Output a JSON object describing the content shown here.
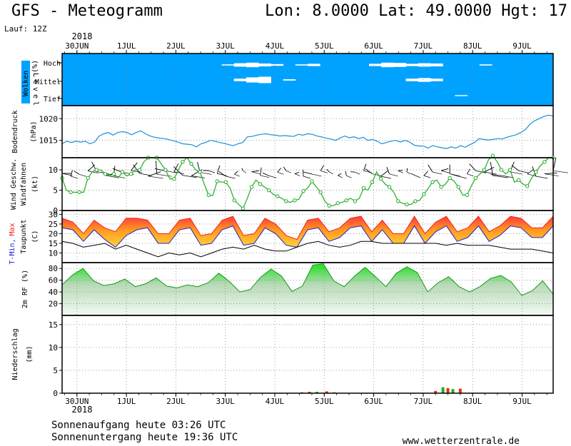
{
  "header": {
    "title": "GFS - Meteogramm",
    "location": "Lon: 8.0000  Lat: 49.0000  Hgt: 17",
    "run": "Lauf: 12Z"
  },
  "axis": {
    "year_top": "2018",
    "year_bottom": "2018",
    "date_labels": [
      "30JUN",
      "1JUL",
      "2JUL",
      "3JUL",
      "4JUL",
      "5JUL",
      "6JUL",
      "7JUL",
      "8JUL",
      "9JUL"
    ]
  },
  "footer": {
    "sunrise": "Sonnenaufgang heute 03:26 UTC",
    "sunset": "Sonnenuntergang heute 19:36 UTC",
    "website": "www.wetterzentrale.de"
  },
  "colors": {
    "cloud": "#00a2ff",
    "pressure": "#1a8fd8",
    "wind": "#22aa22",
    "tmin": "#2222cc",
    "tmax": "#ee2222",
    "rh": "#1db31d",
    "precip_green": "#22aa22",
    "precip_red": "#dd3311"
  },
  "chart_data": [
    {
      "type": "area",
      "panel": "clouds",
      "ylabel_parts": [
        "Wolken",
        "(%)",
        "Level"
      ],
      "levels": [
        "Hoch",
        "Mittel",
        "Tief"
      ],
      "x_start_day": 29.7,
      "x_end_day": 39.55,
      "series": [
        {
          "name": "Hoch",
          "values": [
            100,
            100,
            100,
            100,
            100,
            100,
            100,
            100,
            100,
            100,
            100,
            100,
            100,
            90,
            70,
            60,
            75,
            85,
            100,
            90,
            80,
            100,
            100,
            100,
            100,
            80,
            60,
            65,
            80,
            70,
            75,
            100,
            100,
            100,
            90,
            100,
            100,
            100,
            100,
            100
          ]
        },
        {
          "name": "Mittel",
          "values": [
            100,
            100,
            100,
            100,
            100,
            100,
            100,
            100,
            100,
            100,
            100,
            100,
            100,
            100,
            80,
            60,
            50,
            100,
            90,
            100,
            100,
            100,
            100,
            100,
            100,
            100,
            100,
            100,
            80,
            70,
            80,
            100,
            100,
            100,
            100,
            100,
            100,
            100,
            100,
            100
          ]
        },
        {
          "name": "Tief",
          "values": [
            100,
            100,
            100,
            100,
            100,
            100,
            100,
            100,
            100,
            100,
            100,
            100,
            100,
            100,
            100,
            100,
            100,
            100,
            100,
            100,
            100,
            100,
            100,
            100,
            100,
            100,
            100,
            100,
            100,
            100,
            100,
            100,
            90,
            100,
            100,
            100,
            100,
            100,
            100,
            100
          ]
        }
      ]
    },
    {
      "type": "line",
      "panel": "pressure",
      "ylabel": "Bodendruck",
      "unit": "(hPa)",
      "yticks": [
        1015,
        1020
      ],
      "ylim": [
        1011,
        1023
      ],
      "series": [
        {
          "name": "Bodendruck",
          "values": [
            1014.2,
            1014.8,
            1014.5,
            1014.8,
            1014.6,
            1014.8,
            1014.2,
            1014.6,
            1016.0,
            1016.5,
            1016.8,
            1016.2,
            1016.8,
            1017.0,
            1016.8,
            1016.3,
            1016.8,
            1017.2,
            1016.5,
            1016.0,
            1015.7,
            1015.5,
            1015.4,
            1015.2,
            1014.9,
            1014.6,
            1014.2,
            1014.1,
            1014.0,
            1013.5,
            1014.2,
            1014.5,
            1015.0,
            1014.8,
            1014.5,
            1014.3,
            1014.0,
            1013.8,
            1014.2,
            1014.5,
            1015.8,
            1015.9,
            1016.2,
            1016.4,
            1016.5,
            1016.3,
            1016.2,
            1016.0,
            1016.1,
            1016.0,
            1015.9,
            1016.4,
            1016.2,
            1016.5,
            1016.4,
            1016.0,
            1015.8,
            1015.5,
            1015.3,
            1015.0,
            1015.5,
            1016.0,
            1015.6,
            1015.8,
            1015.4,
            1015.7,
            1015.0,
            1015.2,
            1014.8,
            1014.2,
            1014.5,
            1014.8,
            1015.0,
            1014.6,
            1015.0,
            1014.6,
            1013.9,
            1013.7,
            1013.7,
            1013.2,
            1013.8,
            1013.5,
            1013.3,
            1013.1,
            1013.5,
            1013.2,
            1013.8,
            1013.4,
            1014.0,
            1014.5,
            1015.4,
            1015.2,
            1015.1,
            1015.2,
            1015.4,
            1015.3,
            1015.7,
            1016.0,
            1016.3,
            1016.8,
            1017.5,
            1018.7,
            1019.5,
            1020.0,
            1020.5,
            1020.8,
            1020.6
          ]
        }
      ]
    },
    {
      "type": "line",
      "panel": "wind",
      "ylabel_parts": [
        "Wind Geschw.",
        "Windfahnen",
        "(kt)"
      ],
      "yticks": [
        0,
        5,
        10
      ],
      "ylim": [
        0,
        13
      ],
      "series": [
        {
          "name": "Wind Geschw.",
          "values": [
            8,
            5,
            4.5,
            4.5,
            4.5,
            4.5,
            8,
            9.5,
            10,
            10,
            9,
            8.5,
            9,
            8,
            9.5,
            8.5,
            9,
            10,
            10,
            12,
            13,
            13,
            13,
            11.5,
            10,
            7.8,
            7.8,
            10,
            12,
            13,
            11.5,
            10,
            9.5,
            6.5,
            3.8,
            3.7,
            7.2,
            7,
            7,
            5.5,
            2.5,
            1.5,
            0.5,
            3,
            5.8,
            7.5,
            6.5,
            5.8,
            5,
            4,
            3.5,
            3,
            2.3,
            2,
            2.5,
            2.8,
            4.8,
            5.5,
            7.2,
            5.8,
            4.5,
            2.3,
            1.2,
            1.2,
            1.8,
            2,
            2.5,
            3,
            2.3,
            3,
            5.5,
            5,
            7,
            9.5,
            7.8,
            6.5,
            5.8,
            4.5,
            2.3,
            1.8,
            1.5,
            1.5,
            2.3,
            2.5,
            4,
            5.5,
            7,
            7.5,
            5.8,
            6.5,
            8,
            7.2,
            5.8,
            3.8,
            3.8,
            6,
            8,
            9,
            10,
            12.5,
            13.5,
            12,
            10,
            9,
            10,
            7,
            7.5,
            6.5,
            6,
            8,
            9.5,
            11,
            12,
            13,
            13
          ]
        }
      ]
    },
    {
      "type": "area",
      "panel": "temperature",
      "ylabel_parts": [
        "T-Min,",
        "Max",
        "Taupunkt",
        "(C)"
      ],
      "yticks": [
        10,
        15,
        20,
        25,
        30
      ],
      "ylim": [
        5,
        32
      ],
      "series": [
        {
          "name": "Max",
          "values": [
            28,
            26,
            20,
            27,
            23,
            21,
            28,
            28,
            27,
            20,
            20,
            27,
            28,
            19,
            20,
            27,
            29,
            19,
            20,
            28,
            25,
            19,
            17,
            27,
            28,
            21,
            23,
            28,
            29,
            21,
            27,
            20,
            20,
            29,
            20,
            26,
            29,
            21,
            23,
            29,
            21,
            24,
            29,
            28,
            23,
            23,
            29
          ]
        },
        {
          "name": "Min",
          "values": [
            26,
            25,
            19,
            25,
            20,
            16,
            22,
            25,
            26,
            18,
            18,
            25,
            26,
            17,
            18,
            25,
            27,
            17,
            18,
            26,
            23,
            17,
            16,
            25,
            26,
            19,
            21,
            26,
            27,
            19,
            25,
            18,
            18,
            27,
            18,
            24,
            27,
            19,
            21,
            27,
            19,
            22,
            27,
            26,
            21,
            21,
            27
          ]
        },
        {
          "name": "Taupunkt",
          "values": [
            16,
            15,
            13,
            14,
            15,
            12,
            14,
            12,
            10,
            8,
            10,
            9,
            10,
            8,
            10,
            12,
            13,
            12,
            14,
            12,
            11,
            11,
            13,
            15,
            16,
            14,
            13,
            14,
            16,
            16,
            15,
            15,
            15,
            15,
            15,
            15,
            14,
            15,
            14,
            14,
            14,
            13,
            12,
            12,
            12,
            11,
            10
          ]
        }
      ]
    },
    {
      "type": "area",
      "panel": "humidity",
      "ylabel": "2m RF (%)",
      "yticks": [
        20,
        40,
        60,
        80
      ],
      "ylim": [
        0,
        90
      ],
      "series": [
        {
          "name": "2m RF",
          "values": [
            52,
            69,
            80,
            59,
            51,
            54,
            62,
            49,
            54,
            64,
            50,
            47,
            52,
            49,
            56,
            72,
            58,
            40,
            44,
            65,
            79,
            67,
            41,
            50,
            86,
            88,
            59,
            49,
            67,
            82,
            66,
            49,
            72,
            83,
            73,
            40,
            56,
            66,
            49,
            40,
            49,
            63,
            68,
            57,
            34,
            42,
            59,
            36
          ]
        }
      ]
    },
    {
      "type": "bar",
      "panel": "precipitation",
      "ylabel_parts": [
        "Niederschlag",
        "(mm)"
      ],
      "yticks": [
        0,
        5,
        10,
        15
      ],
      "ylim": [
        0,
        17
      ],
      "series": [
        {
          "name": "Niederschlag",
          "x_days": [
            34.55,
            34.7,
            34.85,
            35.05,
            35.2,
            37.25,
            37.4,
            37.5,
            37.6,
            37.75
          ],
          "values": [
            0.2,
            0.3,
            0.3,
            0.4,
            0.2,
            0.5,
            1.3,
            1.1,
            0.9,
            1.0
          ]
        }
      ]
    }
  ]
}
